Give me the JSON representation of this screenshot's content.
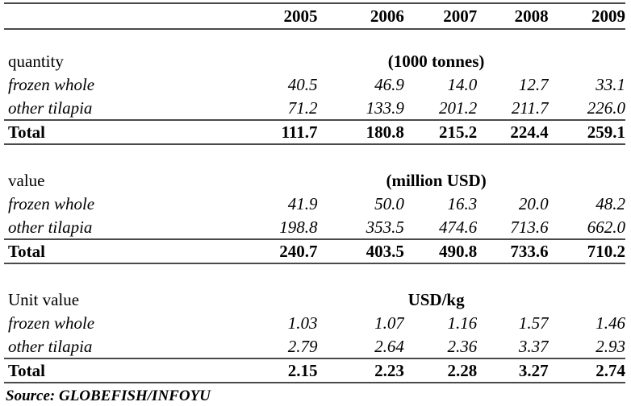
{
  "header": {
    "years": [
      "2005",
      "2006",
      "2007",
      "2008",
      "2009"
    ]
  },
  "sections": [
    {
      "label": "quantity",
      "unit": "(1000 tonnes)",
      "rows": [
        {
          "label": "frozen whole",
          "values": [
            "40.5",
            "46.9",
            "14.0",
            "12.7",
            "33.1"
          ]
        },
        {
          "label": "other tilapia",
          "values": [
            "71.2",
            "133.9",
            "201.2",
            "211.7",
            "226.0"
          ]
        }
      ],
      "total": {
        "label": "Total",
        "values": [
          "111.7",
          "180.8",
          "215.2",
          "224.4",
          "259.1"
        ]
      }
    },
    {
      "label": "value",
      "unit": "(million USD)",
      "rows": [
        {
          "label": "frozen whole",
          "values": [
            "41.9",
            "50.0",
            "16.3",
            "20.0",
            "48.2"
          ]
        },
        {
          "label": "other tilapia",
          "values": [
            "198.8",
            "353.5",
            "474.6",
            "713.6",
            "662.0"
          ]
        }
      ],
      "total": {
        "label": "Total",
        "values": [
          "240.7",
          "403.5",
          "490.8",
          "733.6",
          "710.2"
        ]
      }
    },
    {
      "label": "Unit value",
      "unit": "USD/kg",
      "rows": [
        {
          "label": "frozen whole",
          "values": [
            "1.03",
            "1.07",
            "1.16",
            "1.57",
            "1.46"
          ]
        },
        {
          "label": "other tilapia",
          "values": [
            "2.79",
            "2.64",
            "2.36",
            "3.37",
            "2.93"
          ]
        }
      ],
      "total": {
        "label": "Total",
        "values": [
          "2.15",
          "2.23",
          "2.28",
          "3.27",
          "2.74"
        ]
      }
    }
  ],
  "source": "Source: GLOBEFISH/INFOYU",
  "colors": {
    "rule": "#4a4a4a",
    "text": "#000000",
    "background": "#ffffff"
  }
}
